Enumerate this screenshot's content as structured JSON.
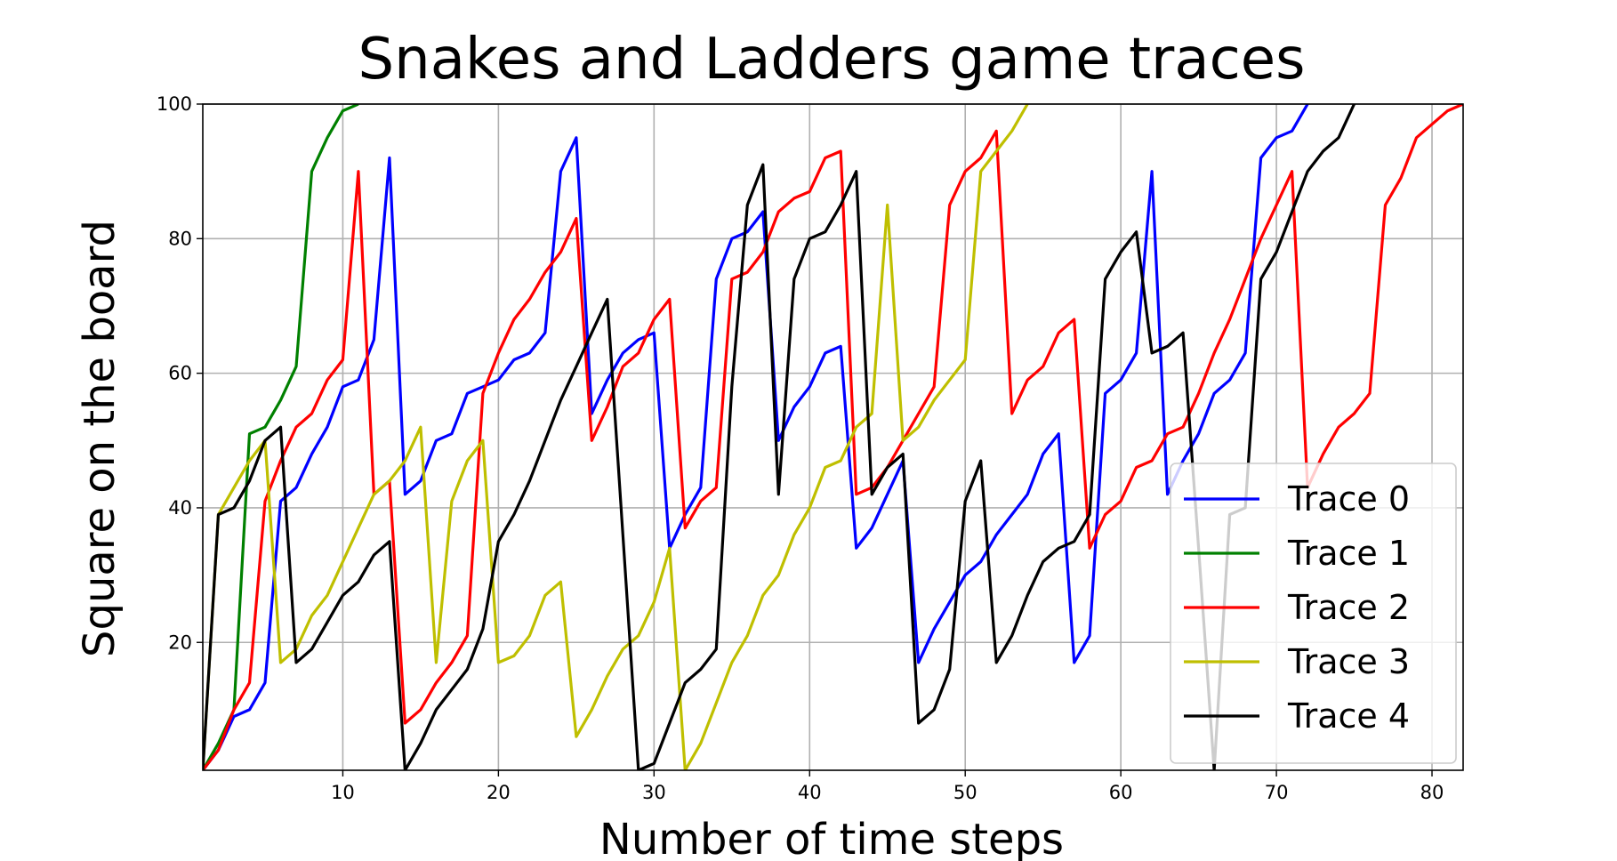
{
  "chart_data": {
    "type": "line",
    "title": "Snakes and Ladders game traces",
    "xlabel": "Number of time steps",
    "ylabel": "Square on the board",
    "xlim": [
      1,
      82
    ],
    "ylim": [
      1,
      100
    ],
    "xticks": [
      10,
      20,
      30,
      40,
      50,
      60,
      70,
      80
    ],
    "yticks": [
      20,
      40,
      60,
      80,
      100
    ],
    "grid": true,
    "legend_position": "lower right",
    "series": [
      {
        "name": "Trace 0",
        "color": "#0000ff",
        "x": [
          1,
          2,
          3,
          4,
          5,
          6,
          7,
          8,
          9,
          10,
          11,
          12,
          13,
          14,
          15,
          16,
          17,
          18,
          19,
          20,
          21,
          22,
          23,
          24,
          25,
          26,
          27,
          28,
          29,
          30,
          31,
          32,
          33,
          34,
          35,
          36,
          37,
          38,
          39,
          40,
          41,
          42,
          43,
          44,
          45,
          46,
          47,
          48,
          49,
          50,
          51,
          52,
          53,
          54,
          55,
          56,
          57,
          58,
          59,
          60,
          61,
          62,
          63,
          64,
          65,
          66,
          67,
          68,
          69,
          70,
          71,
          72
        ],
        "y": [
          1,
          4,
          9,
          10,
          14,
          41,
          43,
          48,
          52,
          58,
          59,
          65,
          92,
          42,
          44,
          50,
          51,
          57,
          58,
          59,
          62,
          63,
          66,
          90,
          95,
          54,
          59,
          63,
          65,
          66,
          34,
          39,
          43,
          74,
          80,
          81,
          84,
          50,
          55,
          58,
          63,
          64,
          34,
          37,
          42,
          47,
          17,
          22,
          26,
          30,
          32,
          36,
          39,
          42,
          48,
          51,
          17,
          21,
          57,
          59,
          63,
          90,
          42,
          47,
          51,
          57,
          59,
          63,
          92,
          95,
          96,
          100
        ]
      },
      {
        "name": "Trace 1",
        "color": "#008000",
        "x": [
          1,
          2,
          3,
          4,
          5,
          6,
          7,
          8,
          9,
          10,
          11
        ],
        "y": [
          1,
          5,
          10,
          51,
          52,
          56,
          61,
          90,
          95,
          99,
          100
        ]
      },
      {
        "name": "Trace 2",
        "color": "#ff0000",
        "x": [
          1,
          2,
          3,
          4,
          5,
          6,
          7,
          8,
          9,
          10,
          11,
          12,
          13,
          14,
          15,
          16,
          17,
          18,
          19,
          20,
          21,
          22,
          23,
          24,
          25,
          26,
          27,
          28,
          29,
          30,
          31,
          32,
          33,
          34,
          35,
          36,
          37,
          38,
          39,
          40,
          41,
          42,
          43,
          44,
          45,
          46,
          47,
          48,
          49,
          50,
          51,
          52,
          53,
          54,
          55,
          56,
          57,
          58,
          59,
          60,
          61,
          62,
          63,
          64,
          65,
          66,
          67,
          68,
          69,
          70,
          71,
          72,
          73,
          74,
          75,
          76,
          77,
          78,
          79,
          80,
          81,
          82
        ],
        "y": [
          1,
          4,
          10,
          14,
          41,
          47,
          52,
          54,
          59,
          62,
          90,
          42,
          44,
          8,
          10,
          14,
          17,
          21,
          57,
          63,
          68,
          71,
          75,
          78,
          83,
          50,
          55,
          61,
          63,
          68,
          71,
          37,
          41,
          43,
          74,
          75,
          78,
          84,
          86,
          87,
          92,
          93,
          42,
          43,
          46,
          50,
          54,
          58,
          85,
          90,
          92,
          96,
          54,
          59,
          61,
          66,
          68,
          34,
          39,
          41,
          46,
          47,
          51,
          52,
          57,
          63,
          68,
          74,
          80,
          85,
          90,
          43,
          48,
          52,
          54,
          57,
          85,
          89,
          95,
          97,
          99,
          100
        ]
      },
      {
        "name": "Trace 3",
        "color": "#bfbf00",
        "x": [
          1,
          2,
          3,
          4,
          5,
          6,
          7,
          8,
          9,
          10,
          11,
          12,
          13,
          14,
          15,
          16,
          17,
          18,
          19,
          20,
          21,
          22,
          23,
          24,
          25,
          26,
          27,
          28,
          29,
          30,
          31,
          32,
          33,
          34,
          35,
          36,
          37,
          38,
          39,
          40,
          41,
          42,
          43,
          44,
          45,
          46,
          47,
          48,
          49,
          50,
          51,
          52,
          53,
          54
        ],
        "y": [
          1,
          39,
          43,
          47,
          50,
          17,
          19,
          24,
          27,
          32,
          37,
          42,
          44,
          47,
          52,
          17,
          41,
          47,
          50,
          17,
          18,
          21,
          27,
          29,
          6,
          10,
          15,
          19,
          21,
          26,
          34,
          1,
          5,
          11,
          17,
          21,
          27,
          30,
          36,
          40,
          46,
          47,
          52,
          54,
          85,
          50,
          52,
          56,
          59,
          62,
          90,
          93,
          96,
          100
        ]
      },
      {
        "name": "Trace 4",
        "color": "#000000",
        "x": [
          1,
          2,
          3,
          4,
          5,
          6,
          7,
          8,
          9,
          10,
          11,
          12,
          13,
          14,
          15,
          16,
          17,
          18,
          19,
          20,
          21,
          22,
          23,
          24,
          25,
          26,
          27,
          28,
          29,
          30,
          31,
          32,
          33,
          34,
          35,
          36,
          37,
          38,
          39,
          40,
          41,
          42,
          43,
          44,
          45,
          46,
          47,
          48,
          49,
          50,
          51,
          52,
          53,
          54,
          55,
          56,
          57,
          58,
          59,
          60,
          61,
          62,
          63,
          64,
          65,
          66,
          67,
          68,
          69,
          70,
          71,
          72,
          73,
          74,
          75
        ],
        "y": [
          1,
          39,
          40,
          44,
          50,
          52,
          17,
          19,
          23,
          27,
          29,
          33,
          35,
          1,
          5,
          10,
          13,
          16,
          22,
          35,
          39,
          44,
          50,
          56,
          61,
          66,
          71,
          36,
          1,
          2,
          8,
          14,
          16,
          19,
          58,
          85,
          91,
          42,
          74,
          80,
          81,
          85,
          90,
          42,
          46,
          48,
          8,
          10,
          16,
          41,
          47,
          17,
          21,
          27,
          32,
          34,
          35,
          39,
          74,
          78,
          81,
          63,
          64,
          66,
          34,
          1,
          39,
          40,
          74,
          78,
          84,
          90,
          93,
          95,
          100
        ]
      }
    ]
  }
}
